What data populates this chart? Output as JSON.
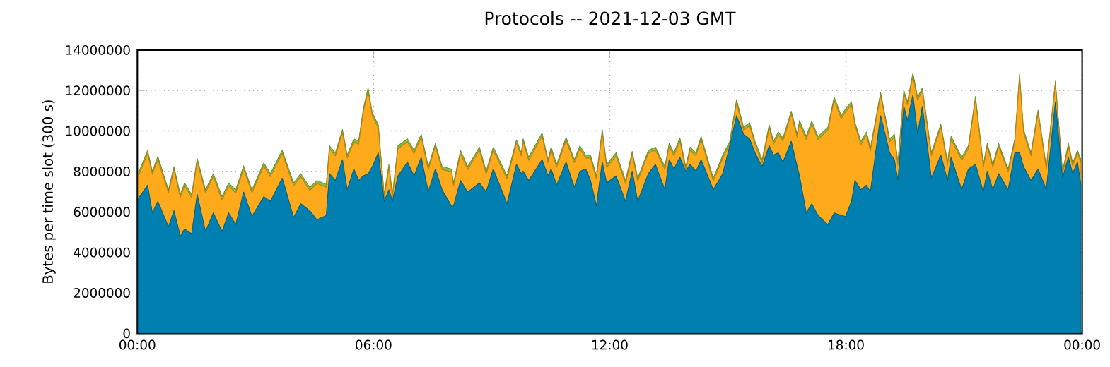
{
  "chart_data": {
    "type": "area",
    "title": "Protocols -- 2021-12-03 GMT",
    "ylabel": "Bytes per time slot (300 s)",
    "stacked": true,
    "grid": true,
    "xlim": [
      0,
      24
    ],
    "ylim": [
      0,
      14000000
    ],
    "xticks": [
      {
        "value": 0,
        "label": "00:00"
      },
      {
        "value": 6,
        "label": "06:00"
      },
      {
        "value": 12,
        "label": "12:00"
      },
      {
        "value": 18,
        "label": "18:00"
      },
      {
        "value": 24,
        "label": "00:00"
      }
    ],
    "yticks": [
      0,
      2000000,
      4000000,
      6000000,
      8000000,
      10000000,
      12000000,
      14000000
    ],
    "x": [
      0.02,
      0.26,
      0.38,
      0.52,
      0.79,
      0.93,
      1.09,
      1.2,
      1.38,
      1.52,
      1.73,
      1.93,
      2.15,
      2.32,
      2.5,
      2.7,
      2.91,
      3.21,
      3.38,
      3.68,
      3.97,
      4.15,
      4.38,
      4.56,
      4.8,
      4.88,
      5.03,
      5.21,
      5.33,
      5.5,
      5.62,
      5.74,
      5.86,
      5.97,
      6.12,
      6.27,
      6.39,
      6.48,
      6.62,
      6.86,
      7.03,
      7.21,
      7.39,
      7.57,
      7.74,
      7.98,
      8.03,
      8.21,
      8.39,
      8.69,
      8.86,
      9.04,
      9.39,
      9.63,
      9.75,
      9.8,
      9.94,
      10.28,
      10.43,
      10.51,
      10.65,
      10.89,
      11.1,
      11.24,
      11.39,
      11.51,
      11.66,
      11.81,
      11.92,
      12.16,
      12.4,
      12.57,
      12.71,
      12.98,
      13.16,
      13.4,
      13.51,
      13.63,
      13.78,
      13.93,
      14.04,
      14.19,
      14.32,
      14.63,
      14.87,
      15.05,
      15.22,
      15.4,
      15.55,
      15.69,
      15.87,
      16.05,
      16.16,
      16.28,
      16.4,
      16.61,
      16.76,
      16.82,
      16.99,
      17.13,
      17.29,
      17.54,
      17.7,
      17.88,
      17.99,
      18.14,
      18.23,
      18.38,
      18.52,
      18.62,
      18.88,
      19.11,
      19.23,
      19.32,
      19.47,
      19.56,
      19.7,
      19.82,
      19.94,
      20.17,
      20.41,
      20.58,
      20.67,
      20.94,
      21.11,
      21.29,
      21.49,
      21.59,
      21.73,
      21.88,
      22.12,
      22.29,
      22.41,
      22.51,
      22.7,
      22.88,
      23.09,
      23.32,
      23.5,
      23.65,
      23.76,
      23.88,
      23.97
    ],
    "series": [
      {
        "color": "#0080b0",
        "values": [
          6640000.0,
          7320000.0,
          5950000.0,
          6520000.0,
          5260000.0,
          6060000.0,
          4800000.0,
          5150000.0,
          4920000.0,
          6860000.0,
          5030000.0,
          5950000.0,
          5030000.0,
          5950000.0,
          5370000.0,
          6980000.0,
          5770000.0,
          6750000.0,
          6520000.0,
          7670000.0,
          5720000.0,
          6400000.0,
          6060000.0,
          5610000.0,
          5830000.0,
          7890000.0,
          7550000.0,
          8580000.0,
          7090000.0,
          8120000.0,
          7550000.0,
          7780000.0,
          7890000.0,
          8240000.0,
          8920000.0,
          6520000.0,
          7090000.0,
          6520000.0,
          7780000.0,
          8460000.0,
          7780000.0,
          8700000.0,
          6980000.0,
          8120000.0,
          7090000.0,
          6290000.0,
          6290000.0,
          7550000.0,
          6980000.0,
          7430000.0,
          6980000.0,
          8120000.0,
          6400000.0,
          8350000.0,
          7890000.0,
          8010000.0,
          7550000.0,
          8580000.0,
          7780000.0,
          8120000.0,
          7320000.0,
          8460000.0,
          7210000.0,
          8010000.0,
          8120000.0,
          7550000.0,
          6290000.0,
          8460000.0,
          7430000.0,
          7780000.0,
          6520000.0,
          8010000.0,
          6520000.0,
          7890000.0,
          8350000.0,
          7090000.0,
          8580000.0,
          8120000.0,
          8700000.0,
          8000000.0,
          8350000.0,
          8010000.0,
          8580000.0,
          7090000.0,
          7890000.0,
          9270000.0,
          10750000.0,
          9840000.0,
          9610000.0,
          8920000.0,
          8240000.0,
          9270000.0,
          8810000.0,
          8920000.0,
          8460000.0,
          9490000.0,
          8240000.0,
          7780000.0,
          5950000.0,
          6400000.0,
          5830000.0,
          5370000.0,
          5950000.0,
          5830000.0,
          5770000.0,
          6520000.0,
          7550000.0,
          7090000.0,
          7320000.0,
          6980000.0,
          10750000.0,
          8920000.0,
          8580000.0,
          7550000.0,
          11210000.0,
          10520000.0,
          11780000.0,
          9840000.0,
          11210000.0,
          7670000.0,
          8810000.0,
          7550000.0,
          8700000.0,
          7090000.0,
          8120000.0,
          8350000.0,
          6980000.0,
          8010000.0,
          7090000.0,
          7890000.0,
          7090000.0,
          8920000.0,
          8920000.0,
          8240000.0,
          7550000.0,
          8120000.0,
          7090000.0,
          11440000.0,
          7670000.0,
          8700000.0,
          7890000.0,
          8460000.0,
          7320000.0
        ]
      },
      {
        "color": "#ffaa1a",
        "values": [
          1100000.0,
          1570000.0,
          1910000.0,
          2070000.0,
          1680000.0,
          2030000.0,
          1910000.0,
          2130000.0,
          1790000.0,
          1640000.0,
          1910000.0,
          1790000.0,
          1570000.0,
          1330000.0,
          1570000.0,
          1150000.0,
          1170000.0,
          1520000.0,
          1220000.0,
          1220000.0,
          1560000.0,
          1340000.0,
          1000000.0,
          1790000.0,
          1380000.0,
          1230000.0,
          1220000.0,
          1340000.0,
          1570000.0,
          1340000.0,
          1790000.0,
          3170000.0,
          4090000.0,
          2480000.0,
          1230000.0,
          190000.0,
          1110000.0,
          190000.0,
          1340000.0,
          1000000.0,
          1110000.0,
          990000.0,
          1110000.0,
          1110000.0,
          1000000.0,
          1680000.0,
          990000.0,
          1340000.0,
          1110000.0,
          1620000.0,
          880000.0,
          930000.0,
          1230000.0,
          1060000.0,
          880000.0,
          1450000.0,
          1000000.0,
          1170000.0,
          650000.0,
          930000.0,
          880000.0,
          1070000.0,
          1220000.0,
          1110000.0,
          540000.0,
          1110000.0,
          1340000.0,
          1460000.0,
          770000.0,
          990000.0,
          880000.0,
          830000.0,
          1000000.0,
          1000000.0,
          700000.0,
          1000000.0,
          650000.0,
          650000.0,
          810000.0,
          90000.0,
          700000.0,
          760000.0,
          1000000.0,
          430000.0,
          770000.0,
          70000.0,
          650000.0,
          190000.0,
          650000.0,
          420000.0,
          190000.0,
          880000.0,
          530000.0,
          880000.0,
          1050000.0,
          1340000.0,
          1450000.0,
          2590000.0,
          3630000.0,
          3930000.0,
          3750000.0,
          4660000.0,
          5570000.0,
          4770000.0,
          5180000.0,
          4770000.0,
          2710000.0,
          2250000.0,
          2480000.0,
          2020000.0,
          1000000.0,
          540000.0,
          1110000.0,
          760000.0,
          650000.0,
          770000.0,
          930000.0,
          1680000.0,
          770000.0,
          1100000.0,
          1380000.0,
          760000.0,
          880000.0,
          1460000.0,
          1000000.0,
          3210000.0,
          1220000.0,
          1220000.0,
          1110000.0,
          1340000.0,
          880000.0,
          540000.0,
          3740000.0,
          1680000.0,
          1220000.0,
          2760000.0,
          1000000.0,
          880000.0,
          190000.0,
          530000.0,
          380000.0,
          430000.0,
          1110000.0
        ]
      },
      {
        "color": "#88c040",
        "values": [
          150000.0,
          150000.0,
          150000.0,
          150000.0,
          150000.0,
          150000.0,
          150000.0,
          150000.0,
          150000.0,
          150000.0,
          150000.0,
          150000.0,
          150000.0,
          150000.0,
          150000.0,
          150000.0,
          150000.0,
          150000.0,
          150000.0,
          150000.0,
          150000.0,
          150000.0,
          150000.0,
          150000.0,
          150000.0,
          150000.0,
          150000.0,
          150000.0,
          150000.0,
          150000.0,
          150000.0,
          150000.0,
          150000.0,
          150000.0,
          150000.0,
          150000.0,
          150000.0,
          150000.0,
          150000.0,
          150000.0,
          150000.0,
          150000.0,
          150000.0,
          150000.0,
          150000.0,
          150000.0,
          150000.0,
          150000.0,
          150000.0,
          150000.0,
          150000.0,
          150000.0,
          150000.0,
          150000.0,
          150000.0,
          150000.0,
          150000.0,
          150000.0,
          150000.0,
          150000.0,
          150000.0,
          150000.0,
          150000.0,
          150000.0,
          150000.0,
          150000.0,
          150000.0,
          150000.0,
          150000.0,
          150000.0,
          150000.0,
          150000.0,
          150000.0,
          150000.0,
          150000.0,
          150000.0,
          150000.0,
          150000.0,
          150000.0,
          150000.0,
          150000.0,
          150000.0,
          150000.0,
          150000.0,
          150000.0,
          150000.0,
          150000.0,
          150000.0,
          150000.0,
          150000.0,
          150000.0,
          150000.0,
          150000.0,
          150000.0,
          150000.0,
          150000.0,
          150000.0,
          150000.0,
          150000.0,
          150000.0,
          150000.0,
          150000.0,
          150000.0,
          150000.0,
          150000.0,
          150000.0,
          150000.0,
          150000.0,
          150000.0,
          150000.0,
          150000.0,
          150000.0,
          150000.0,
          150000.0,
          150000.0,
          150000.0,
          150000.0,
          150000.0,
          150000.0,
          150000.0,
          150000.0,
          150000.0,
          150000.0,
          150000.0,
          150000.0,
          150000.0,
          150000.0,
          150000.0,
          150000.0,
          150000.0,
          150000.0,
          150000.0,
          150000.0,
          150000.0,
          150000.0,
          150000.0,
          150000.0,
          150000.0,
          150000.0,
          150000.0,
          150000.0,
          150000.0,
          150000.0
        ]
      }
    ]
  }
}
